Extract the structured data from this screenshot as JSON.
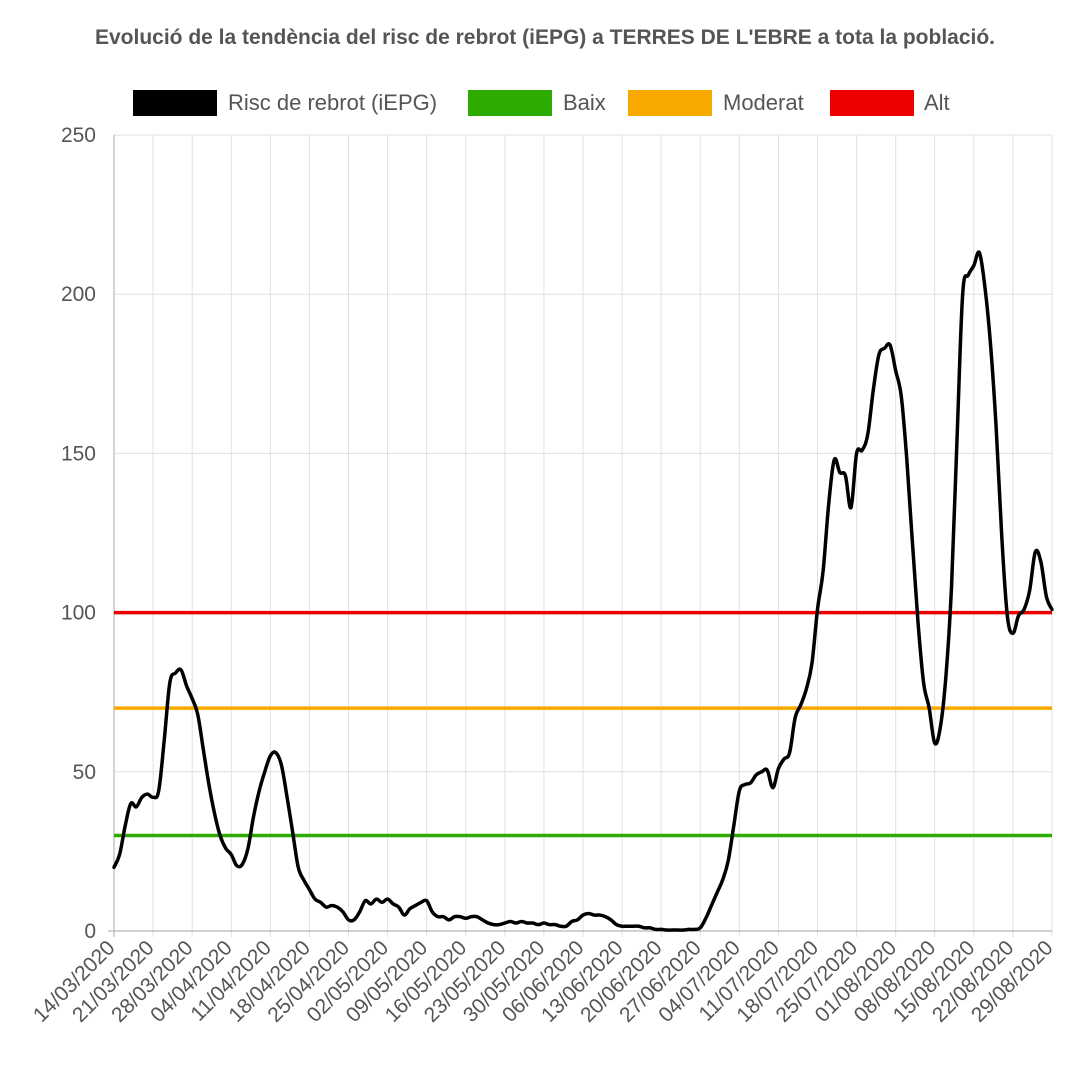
{
  "chart_data": {
    "type": "line",
    "title": "Evolució de la tendència del risc de rebrot (iEPG) a TERRES DE L'EBRE a tota la població.",
    "xlabel": "",
    "ylabel": "",
    "ylim": [
      0,
      250
    ],
    "yticks": [
      "0",
      "50",
      "100",
      "150",
      "200",
      "250"
    ],
    "x_start": "14/03/2020",
    "x_end": "29/08/2020",
    "x_ticks": [
      "14/03/2020",
      "21/03/2020",
      "28/03/2020",
      "04/04/2020",
      "11/04/2020",
      "18/04/2020",
      "25/04/2020",
      "02/05/2020",
      "09/05/2020",
      "16/05/2020",
      "23/05/2020",
      "30/05/2020",
      "06/06/2020",
      "13/06/2020",
      "20/06/2020",
      "27/06/2020",
      "04/07/2020",
      "11/07/2020",
      "18/07/2020",
      "25/07/2020",
      "01/08/2020",
      "08/08/2020",
      "15/08/2020",
      "22/08/2020",
      "29/08/2020"
    ],
    "grid": true,
    "legend_position": "top",
    "series": [
      {
        "name": "Risc de rebrot (iEPG)",
        "color": "#000000",
        "points": [
          [
            "14/03/2020",
            20
          ],
          [
            "15/03/2020",
            24
          ],
          [
            "16/03/2020",
            33
          ],
          [
            "17/03/2020",
            40
          ],
          [
            "18/03/2020",
            39
          ],
          [
            "19/03/2020",
            42
          ],
          [
            "20/03/2020",
            43
          ],
          [
            "21/03/2020",
            42
          ],
          [
            "22/03/2020",
            44
          ],
          [
            "23/03/2020",
            60
          ],
          [
            "24/03/2020",
            78
          ],
          [
            "25/03/2020",
            81
          ],
          [
            "26/03/2020",
            82
          ],
          [
            "27/03/2020",
            77
          ],
          [
            "28/03/2020",
            73
          ],
          [
            "29/03/2020",
            68
          ],
          [
            "30/03/2020",
            57
          ],
          [
            "31/03/2020",
            46
          ],
          [
            "01/04/2020",
            37
          ],
          [
            "02/04/2020",
            30
          ],
          [
            "03/04/2020",
            26
          ],
          [
            "04/04/2020",
            24
          ],
          [
            "05/04/2020",
            20.5
          ],
          [
            "06/04/2020",
            21
          ],
          [
            "07/04/2020",
            26
          ],
          [
            "08/04/2020",
            36
          ],
          [
            "09/04/2020",
            44
          ],
          [
            "10/04/2020",
            50
          ],
          [
            "11/04/2020",
            55
          ],
          [
            "12/04/2020",
            56
          ],
          [
            "13/04/2020",
            52
          ],
          [
            "14/04/2020",
            42
          ],
          [
            "15/04/2020",
            31
          ],
          [
            "16/04/2020",
            20
          ],
          [
            "17/04/2020",
            16
          ],
          [
            "18/04/2020",
            13
          ],
          [
            "19/04/2020",
            10
          ],
          [
            "20/04/2020",
            9
          ],
          [
            "21/04/2020",
            7.5
          ],
          [
            "22/04/2020",
            8
          ],
          [
            "23/04/2020",
            7.5
          ],
          [
            "24/04/2020",
            6
          ],
          [
            "25/04/2020",
            3.5
          ],
          [
            "26/04/2020",
            3.5
          ],
          [
            "27/04/2020",
            6
          ],
          [
            "28/04/2020",
            9.5
          ],
          [
            "29/04/2020",
            8.5
          ],
          [
            "30/04/2020",
            10
          ],
          [
            "01/05/2020",
            9
          ],
          [
            "02/05/2020",
            10
          ],
          [
            "03/05/2020",
            8.5
          ],
          [
            "04/05/2020",
            7.5
          ],
          [
            "05/05/2020",
            5
          ],
          [
            "06/05/2020",
            7
          ],
          [
            "07/05/2020",
            8
          ],
          [
            "08/05/2020",
            9
          ],
          [
            "09/05/2020",
            9.5
          ],
          [
            "10/05/2020",
            6
          ],
          [
            "11/05/2020",
            4.5
          ],
          [
            "12/05/2020",
            4.5
          ],
          [
            "13/05/2020",
            3.5
          ],
          [
            "14/05/2020",
            4.5
          ],
          [
            "15/05/2020",
            4.5
          ],
          [
            "16/05/2020",
            4
          ],
          [
            "17/05/2020",
            4.5
          ],
          [
            "18/05/2020",
            4.5
          ],
          [
            "19/05/2020",
            3.5
          ],
          [
            "20/05/2020",
            2.5
          ],
          [
            "21/05/2020",
            2
          ],
          [
            "22/05/2020",
            2
          ],
          [
            "23/05/2020",
            2.5
          ],
          [
            "24/05/2020",
            3
          ],
          [
            "25/05/2020",
            2.5
          ],
          [
            "26/05/2020",
            3
          ],
          [
            "27/05/2020",
            2.5
          ],
          [
            "28/05/2020",
            2.5
          ],
          [
            "29/05/2020",
            2
          ],
          [
            "30/05/2020",
            2.5
          ],
          [
            "31/05/2020",
            2
          ],
          [
            "01/06/2020",
            2
          ],
          [
            "02/06/2020",
            1.5
          ],
          [
            "03/06/2020",
            1.5
          ],
          [
            "04/06/2020",
            3
          ],
          [
            "05/06/2020",
            3.5
          ],
          [
            "06/06/2020",
            5
          ],
          [
            "07/06/2020",
            5.5
          ],
          [
            "08/06/2020",
            5
          ],
          [
            "09/06/2020",
            5
          ],
          [
            "10/06/2020",
            4.5
          ],
          [
            "11/06/2020",
            3.5
          ],
          [
            "12/06/2020",
            2
          ],
          [
            "13/06/2020",
            1.5
          ],
          [
            "14/06/2020",
            1.5
          ],
          [
            "15/06/2020",
            1.5
          ],
          [
            "16/06/2020",
            1.5
          ],
          [
            "17/06/2020",
            1
          ],
          [
            "18/06/2020",
            1
          ],
          [
            "19/06/2020",
            0.5
          ],
          [
            "20/06/2020",
            0.5
          ],
          [
            "21/06/2020",
            0.3
          ],
          [
            "22/06/2020",
            0.3
          ],
          [
            "23/06/2020",
            0.3
          ],
          [
            "24/06/2020",
            0.3
          ],
          [
            "25/06/2020",
            0.5
          ],
          [
            "26/06/2020",
            0.5
          ],
          [
            "27/06/2020",
            1
          ],
          [
            "28/06/2020",
            4
          ],
          [
            "29/06/2020",
            8
          ],
          [
            "30/06/2020",
            12
          ],
          [
            "01/07/2020",
            16
          ],
          [
            "02/07/2020",
            22
          ],
          [
            "03/07/2020",
            33
          ],
          [
            "04/07/2020",
            44
          ],
          [
            "05/07/2020",
            46
          ],
          [
            "06/07/2020",
            46.5
          ],
          [
            "07/07/2020",
            49
          ],
          [
            "08/07/2020",
            50
          ],
          [
            "09/07/2020",
            50.5
          ],
          [
            "10/07/2020",
            45
          ],
          [
            "11/07/2020",
            51
          ],
          [
            "12/07/2020",
            54
          ],
          [
            "13/07/2020",
            56
          ],
          [
            "14/07/2020",
            67
          ],
          [
            "15/07/2020",
            71
          ],
          [
            "16/07/2020",
            76
          ],
          [
            "17/07/2020",
            84
          ],
          [
            "18/07/2020",
            101
          ],
          [
            "19/07/2020",
            113
          ],
          [
            "20/07/2020",
            134
          ],
          [
            "21/07/2020",
            148
          ],
          [
            "22/07/2020",
            144
          ],
          [
            "23/07/2020",
            143
          ],
          [
            "24/07/2020",
            133
          ],
          [
            "25/07/2020",
            150
          ],
          [
            "26/07/2020",
            151
          ],
          [
            "27/07/2020",
            156
          ],
          [
            "28/07/2020",
            170
          ],
          [
            "29/07/2020",
            181
          ],
          [
            "30/07/2020",
            183
          ],
          [
            "31/07/2020",
            184
          ],
          [
            "01/08/2020",
            176
          ],
          [
            "02/08/2020",
            168
          ],
          [
            "03/08/2020",
            148
          ],
          [
            "04/08/2020",
            122
          ],
          [
            "05/08/2020",
            97
          ],
          [
            "06/08/2020",
            78
          ],
          [
            "07/08/2020",
            70
          ],
          [
            "08/08/2020",
            59
          ],
          [
            "09/08/2020",
            64
          ],
          [
            "10/08/2020",
            80
          ],
          [
            "11/08/2020",
            108
          ],
          [
            "12/08/2020",
            155
          ],
          [
            "13/08/2020",
            200
          ],
          [
            "14/08/2020",
            206
          ],
          [
            "15/08/2020",
            209
          ],
          [
            "16/08/2020",
            213
          ],
          [
            "17/08/2020",
            202
          ],
          [
            "18/08/2020",
            184
          ],
          [
            "19/08/2020",
            158
          ],
          [
            "20/08/2020",
            124
          ],
          [
            "21/08/2020",
            99
          ],
          [
            "22/08/2020",
            93.5
          ],
          [
            "23/08/2020",
            99
          ],
          [
            "24/08/2020",
            101
          ],
          [
            "25/08/2020",
            107
          ],
          [
            "26/08/2020",
            119
          ],
          [
            "27/08/2020",
            116
          ],
          [
            "28/08/2020",
            105
          ],
          [
            "29/08/2020",
            101
          ]
        ]
      },
      {
        "name": "Baix",
        "color": "#2eab00",
        "constant": 30
      },
      {
        "name": "Moderat",
        "color": "#f8a900",
        "constant": 70
      },
      {
        "name": "Alt",
        "color": "#ee0000",
        "constant": 100
      }
    ]
  }
}
